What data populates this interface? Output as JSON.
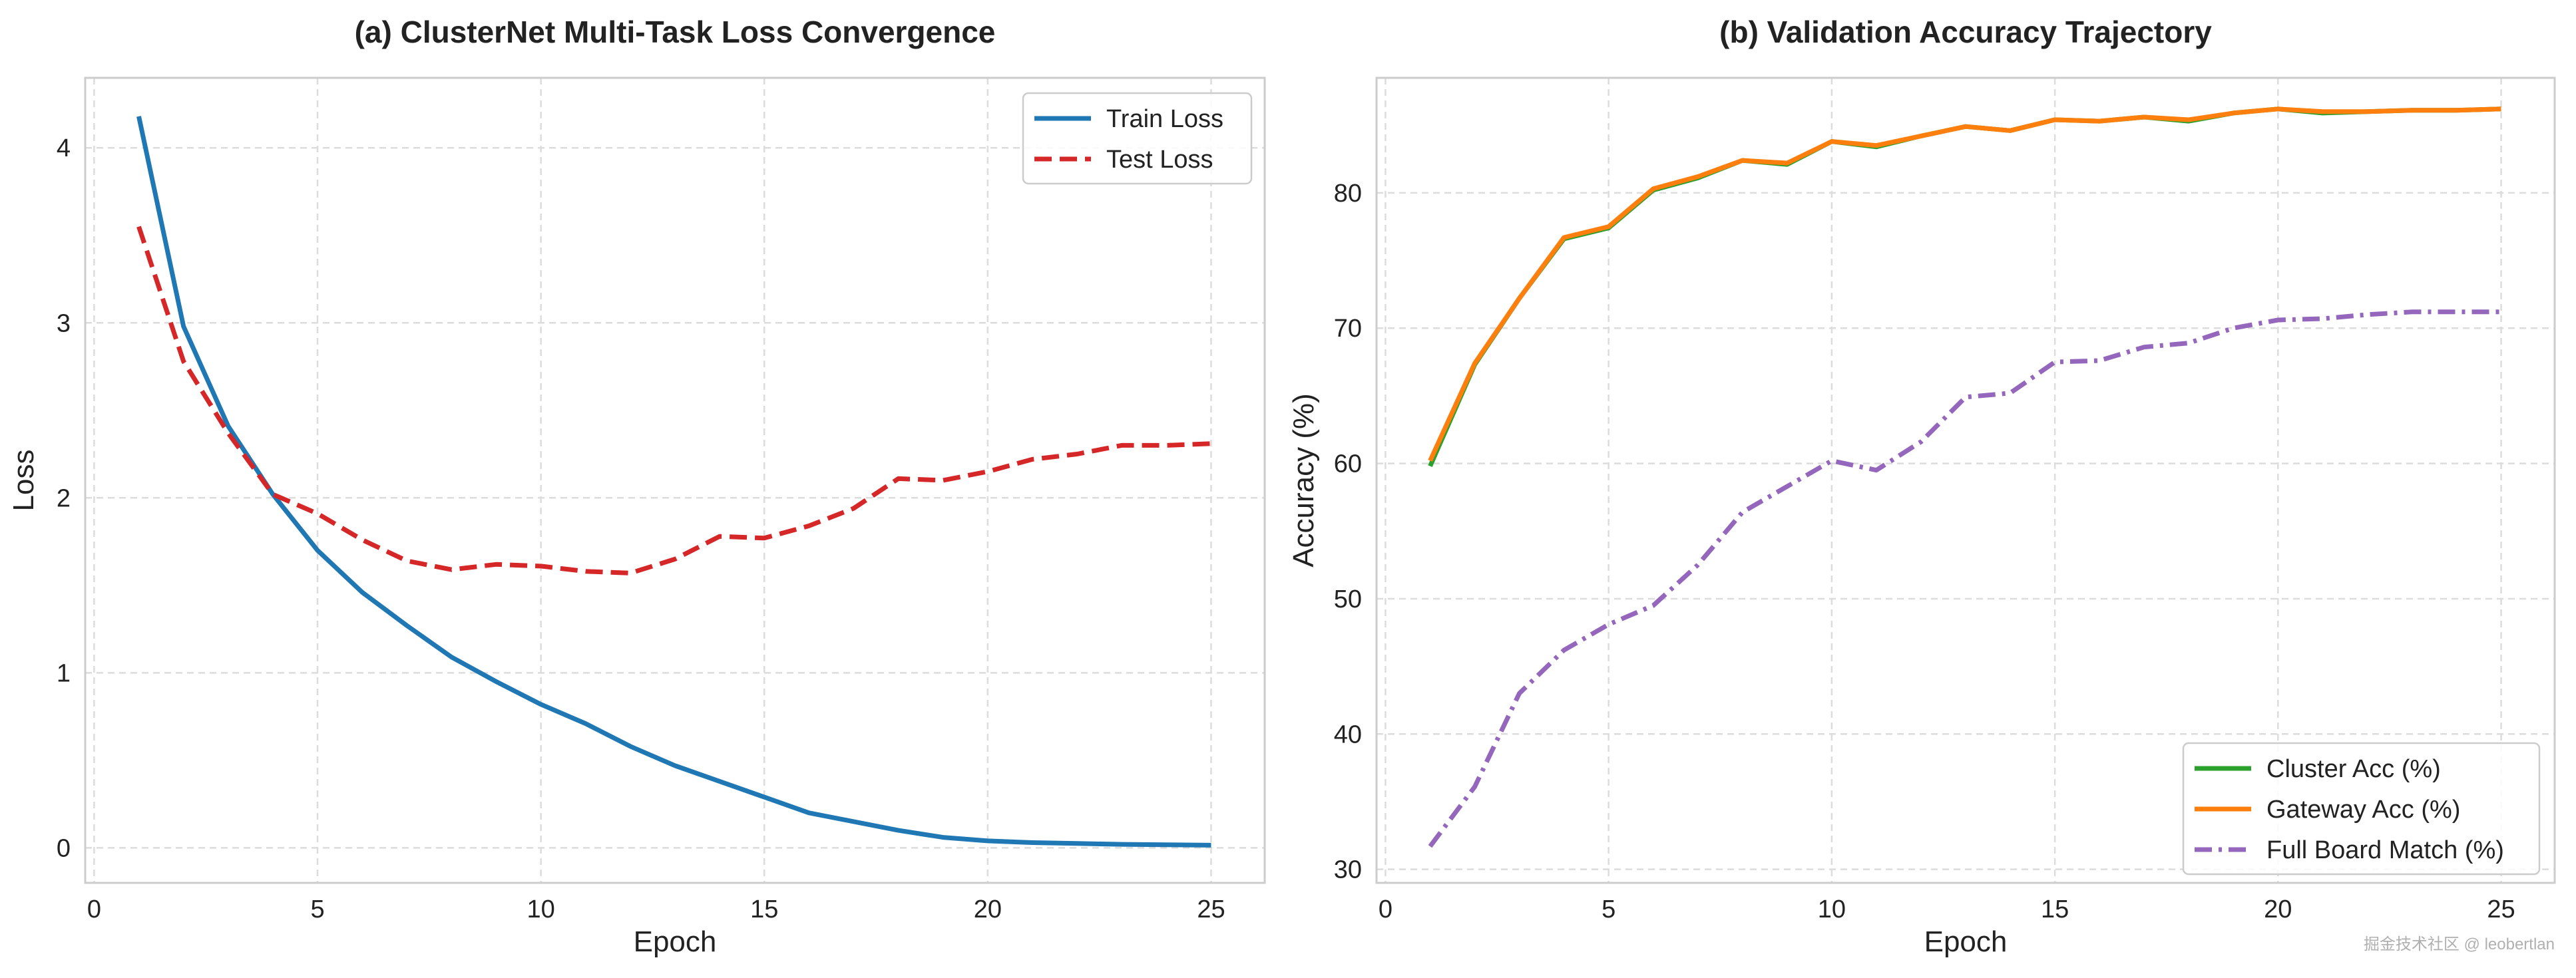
{
  "watermark": "掘金技术社区 @ leobertlan",
  "chart_data": [
    {
      "type": "line",
      "title": "(a) ClusterNet Multi-Task Loss Convergence",
      "xlabel": "Epoch",
      "ylabel": "Loss",
      "xlim": [
        -0.2,
        26.2
      ],
      "ylim": [
        -0.2,
        4.4
      ],
      "xticks": [
        0,
        5,
        10,
        15,
        20,
        25
      ],
      "yticks": [
        0,
        1,
        2,
        3,
        4
      ],
      "grid": true,
      "legend_position": "top-right",
      "x": [
        1,
        2,
        3,
        4,
        5,
        6,
        7,
        8,
        9,
        10,
        11,
        12,
        13,
        14,
        15,
        16,
        17,
        18,
        19,
        20,
        21,
        22,
        23,
        24,
        25
      ],
      "series": [
        {
          "name": "Train Loss",
          "color": "#1f77b4",
          "style": "solid",
          "values": [
            4.18,
            2.98,
            2.41,
            2.02,
            1.7,
            1.46,
            1.27,
            1.09,
            0.95,
            0.82,
            0.71,
            0.58,
            0.47,
            0.38,
            0.29,
            0.2,
            0.15,
            0.1,
            0.06,
            0.04,
            0.03,
            0.025,
            0.02,
            0.018,
            0.015
          ]
        },
        {
          "name": "Test Loss",
          "color": "#d62728",
          "style": "dashed",
          "values": [
            3.55,
            2.78,
            2.37,
            2.02,
            1.91,
            1.76,
            1.64,
            1.59,
            1.62,
            1.61,
            1.58,
            1.57,
            1.65,
            1.78,
            1.77,
            1.84,
            1.94,
            2.11,
            2.1,
            2.15,
            2.22,
            2.25,
            2.3,
            2.3,
            2.31
          ]
        }
      ]
    },
    {
      "type": "line",
      "title": "(b) Validation Accuracy Trajectory",
      "xlabel": "Epoch",
      "ylabel": "Accuracy (%)",
      "xlim": [
        -0.2,
        26.2
      ],
      "ylim": [
        29,
        88.5
      ],
      "xticks": [
        0,
        5,
        10,
        15,
        20,
        25
      ],
      "yticks": [
        30,
        40,
        50,
        60,
        70,
        80
      ],
      "grid": true,
      "legend_position": "bottom-right",
      "x": [
        1,
        2,
        3,
        4,
        5,
        6,
        7,
        8,
        9,
        10,
        11,
        12,
        13,
        14,
        15,
        16,
        17,
        18,
        19,
        20,
        21,
        22,
        23,
        24,
        25
      ],
      "series": [
        {
          "name": "Cluster Acc (%)",
          "color": "#2ca02c",
          "style": "solid",
          "values": [
            59.8,
            67.3,
            72.2,
            76.6,
            77.4,
            80.2,
            81.1,
            82.4,
            82.1,
            83.8,
            83.4,
            84.2,
            84.9,
            84.6,
            85.4,
            85.3,
            85.6,
            85.3,
            85.9,
            86.2,
            85.9,
            86.0,
            86.1,
            86.1,
            86.2
          ]
        },
        {
          "name": "Gateway Acc (%)",
          "color": "#ff7f0e",
          "style": "solid",
          "values": [
            60.2,
            67.4,
            72.2,
            76.7,
            77.5,
            80.3,
            81.2,
            82.4,
            82.2,
            83.8,
            83.5,
            84.2,
            84.9,
            84.6,
            85.4,
            85.3,
            85.6,
            85.4,
            85.9,
            86.2,
            86.0,
            86.0,
            86.1,
            86.1,
            86.2
          ]
        },
        {
          "name": "Full Board Match (%)",
          "color": "#9467bd",
          "style": "dashdot",
          "values": [
            31.7,
            36.1,
            43.0,
            46.2,
            48.1,
            49.5,
            52.5,
            56.4,
            58.3,
            60.2,
            59.5,
            61.6,
            64.9,
            65.2,
            67.5,
            67.6,
            68.6,
            68.9,
            70.0,
            70.6,
            70.7,
            71.0,
            71.2,
            71.2,
            71.2
          ]
        }
      ]
    }
  ]
}
